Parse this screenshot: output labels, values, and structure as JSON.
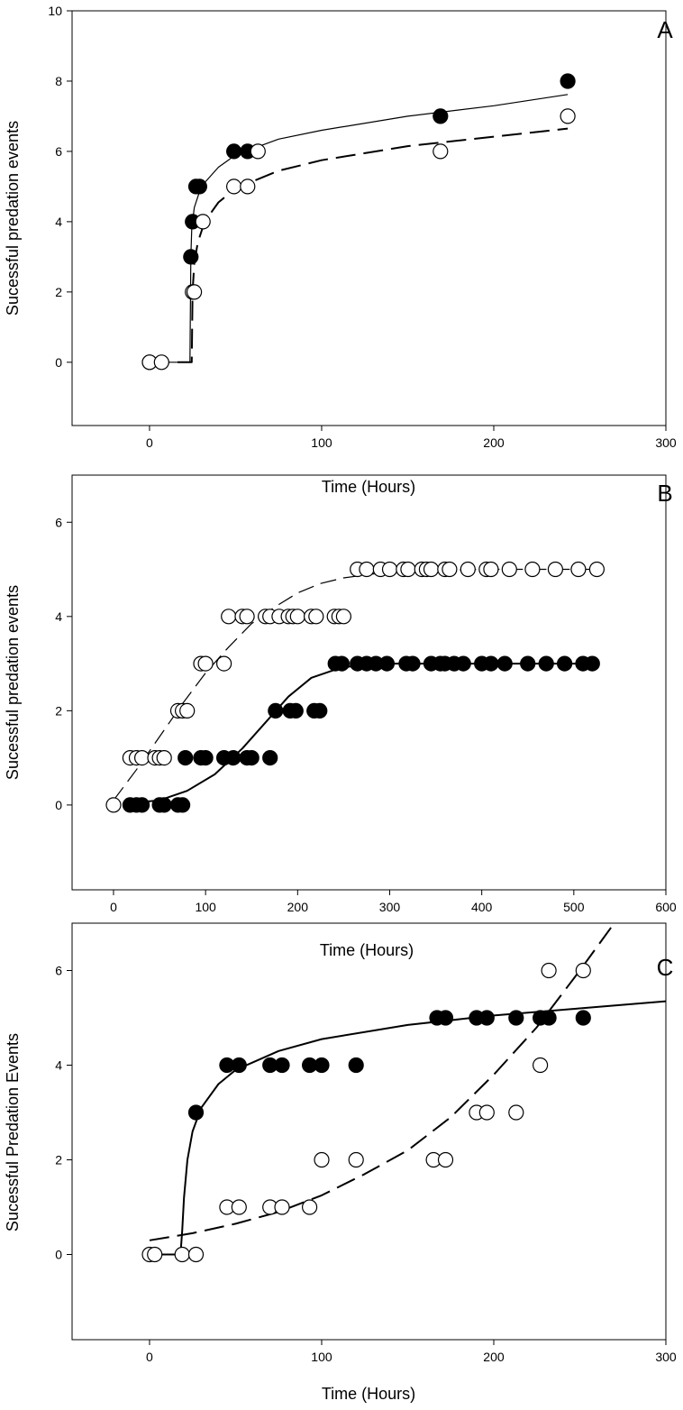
{
  "chart_data": [
    {
      "type": "scatter",
      "panel_label": "A",
      "xlabel": "Time (Hours)",
      "ylabel": "Sucessful predation events",
      "xlim": [
        -45,
        300
      ],
      "ylim": [
        -1.8,
        10
      ],
      "xticks": [
        0,
        100,
        200,
        300
      ],
      "yticks": [
        0,
        2,
        4,
        6,
        8,
        10
      ],
      "grid": false,
      "series": [
        {
          "marker": "filled-circle",
          "fit_line": "solid-thin",
          "points": [
            [
              0,
              0
            ],
            [
              24,
              3
            ],
            [
              25,
              4
            ],
            [
              27,
              5
            ],
            [
              29,
              5
            ],
            [
              49,
              6
            ],
            [
              57,
              6
            ],
            [
              169,
              7
            ],
            [
              243,
              8
            ]
          ],
          "fit": [
            [
              0,
              0
            ],
            [
              23.5,
              0
            ],
            [
              24,
              3
            ],
            [
              24.5,
              3.8
            ],
            [
              26,
              4.4
            ],
            [
              30,
              5.0
            ],
            [
              40,
              5.55
            ],
            [
              50,
              5.9
            ],
            [
              75,
              6.35
            ],
            [
              100,
              6.6
            ],
            [
              150,
              7.0
            ],
            [
              200,
              7.3
            ],
            [
              243,
              7.62
            ]
          ]
        },
        {
          "marker": "open-circle",
          "fit_line": "dashed",
          "points": [
            [
              0,
              0
            ],
            [
              7,
              0
            ],
            [
              25,
              2
            ],
            [
              26,
              2
            ],
            [
              31,
              4
            ],
            [
              49,
              5
            ],
            [
              57,
              5
            ],
            [
              63,
              6
            ],
            [
              169,
              6
            ],
            [
              243,
              7
            ]
          ],
          "fit": [
            [
              0,
              0
            ],
            [
              24.5,
              0
            ],
            [
              25,
              2
            ],
            [
              26,
              2.8
            ],
            [
              28,
              3.4
            ],
            [
              32,
              4.0
            ],
            [
              40,
              4.55
            ],
            [
              50,
              4.95
            ],
            [
              75,
              5.45
            ],
            [
              100,
              5.75
            ],
            [
              150,
              6.15
            ],
            [
              200,
              6.42
            ],
            [
              243,
              6.65
            ]
          ]
        }
      ]
    },
    {
      "type": "scatter",
      "panel_label": "B",
      "xlabel": "Time (Hours)",
      "ylabel": "Sucessful predation events",
      "xlim": [
        -45,
        600
      ],
      "ylim": [
        -1.8,
        7
      ],
      "xticks": [
        0,
        100,
        200,
        300,
        400,
        500,
        600
      ],
      "yticks": [
        0,
        2,
        4,
        6
      ],
      "grid": false,
      "series": [
        {
          "marker": "filled-circle",
          "fit_line": "solid",
          "points": [
            [
              18,
              0
            ],
            [
              25,
              0
            ],
            [
              31,
              0
            ],
            [
              50,
              0
            ],
            [
              55,
              0
            ],
            [
              70,
              0
            ],
            [
              75,
              0
            ],
            [
              78,
              1
            ],
            [
              95,
              1
            ],
            [
              100,
              1
            ],
            [
              120,
              1
            ],
            [
              130,
              1
            ],
            [
              145,
              1
            ],
            [
              150,
              1
            ],
            [
              170,
              1
            ],
            [
              176,
              2
            ],
            [
              192,
              2
            ],
            [
              198,
              2
            ],
            [
              218,
              2
            ],
            [
              224,
              2
            ],
            [
              241,
              3
            ],
            [
              248,
              3
            ],
            [
              265,
              3
            ],
            [
              275,
              3
            ],
            [
              285,
              3
            ],
            [
              297,
              3
            ],
            [
              318,
              3
            ],
            [
              325,
              3
            ],
            [
              345,
              3
            ],
            [
              355,
              3
            ],
            [
              360,
              3
            ],
            [
              370,
              3
            ],
            [
              380,
              3
            ],
            [
              400,
              3
            ],
            [
              410,
              3
            ],
            [
              425,
              3
            ],
            [
              450,
              3
            ],
            [
              470,
              3
            ],
            [
              490,
              3
            ],
            [
              510,
              3
            ],
            [
              520,
              3
            ]
          ],
          "fit": [
            [
              18,
              0.04
            ],
            [
              50,
              0.1
            ],
            [
              80,
              0.3
            ],
            [
              110,
              0.65
            ],
            [
              140,
              1.2
            ],
            [
              165,
              1.75
            ],
            [
              190,
              2.3
            ],
            [
              215,
              2.7
            ],
            [
              245,
              2.9
            ],
            [
              270,
              2.98
            ],
            [
              300,
              3.0
            ],
            [
              400,
              3.0
            ],
            [
              520,
              3.0
            ]
          ]
        },
        {
          "marker": "open-circle",
          "fit_line": "dashed-thin",
          "points": [
            [
              0,
              0
            ],
            [
              18,
              1
            ],
            [
              25,
              1
            ],
            [
              31,
              1
            ],
            [
              45,
              1
            ],
            [
              50,
              1
            ],
            [
              55,
              1
            ],
            [
              70,
              2
            ],
            [
              75,
              2
            ],
            [
              80,
              2
            ],
            [
              95,
              3
            ],
            [
              100,
              3
            ],
            [
              120,
              3
            ],
            [
              125,
              4
            ],
            [
              140,
              4
            ],
            [
              145,
              4
            ],
            [
              165,
              4
            ],
            [
              170,
              4
            ],
            [
              180,
              4
            ],
            [
              190,
              4
            ],
            [
              195,
              4
            ],
            [
              200,
              4
            ],
            [
              215,
              4
            ],
            [
              220,
              4
            ],
            [
              240,
              4
            ],
            [
              245,
              4
            ],
            [
              250,
              4
            ],
            [
              265,
              5
            ],
            [
              275,
              5
            ],
            [
              290,
              5
            ],
            [
              300,
              5
            ],
            [
              315,
              5
            ],
            [
              320,
              5
            ],
            [
              335,
              5
            ],
            [
              340,
              5
            ],
            [
              345,
              5
            ],
            [
              360,
              5
            ],
            [
              365,
              5
            ],
            [
              385,
              5
            ],
            [
              405,
              5
            ],
            [
              410,
              5
            ],
            [
              430,
              5
            ],
            [
              455,
              5
            ],
            [
              480,
              5
            ],
            [
              505,
              5
            ],
            [
              525,
              5
            ]
          ],
          "fit": [
            [
              0,
              0.1
            ],
            [
              25,
              0.75
            ],
            [
              50,
              1.45
            ],
            [
              75,
              2.15
            ],
            [
              100,
              2.8
            ],
            [
              125,
              3.35
            ],
            [
              150,
              3.85
            ],
            [
              175,
              4.2
            ],
            [
              200,
              4.5
            ],
            [
              225,
              4.7
            ],
            [
              250,
              4.82
            ],
            [
              300,
              4.95
            ],
            [
              400,
              5.0
            ],
            [
              525,
              5.0
            ]
          ]
        }
      ]
    },
    {
      "type": "scatter",
      "panel_label": "C",
      "xlabel": "Time (Hours)",
      "ylabel": "Sucessful Predation Events",
      "xlim": [
        -45,
        300
      ],
      "ylim": [
        -1.8,
        7
      ],
      "xticks": [
        0,
        100,
        200,
        300
      ],
      "yticks": [
        0,
        2,
        4,
        6
      ],
      "grid": false,
      "series": [
        {
          "marker": "filled-circle",
          "fit_line": "solid",
          "points": [
            [
              27,
              3
            ],
            [
              45,
              4
            ],
            [
              52,
              4
            ],
            [
              70,
              4
            ],
            [
              77,
              4
            ],
            [
              93,
              4
            ],
            [
              100,
              4
            ],
            [
              120,
              4
            ],
            [
              167,
              5
            ],
            [
              172,
              5
            ],
            [
              190,
              5
            ],
            [
              196,
              5
            ],
            [
              213,
              5
            ],
            [
              227,
              5
            ],
            [
              232,
              5
            ],
            [
              252,
              5
            ]
          ],
          "fit": [
            [
              0,
              0
            ],
            [
              18,
              0
            ],
            [
              19,
              0.5
            ],
            [
              20,
              1.2
            ],
            [
              22,
              2.0
            ],
            [
              25,
              2.6
            ],
            [
              30,
              3.1
            ],
            [
              40,
              3.6
            ],
            [
              50,
              3.9
            ],
            [
              75,
              4.3
            ],
            [
              100,
              4.55
            ],
            [
              150,
              4.85
            ],
            [
              200,
              5.05
            ],
            [
              250,
              5.2
            ],
            [
              300,
              5.35
            ]
          ]
        },
        {
          "marker": "open-circle",
          "fit_line": "dashed",
          "points": [
            [
              0,
              0
            ],
            [
              3,
              0
            ],
            [
              19,
              0
            ],
            [
              27,
              0
            ],
            [
              45,
              1
            ],
            [
              52,
              1
            ],
            [
              70,
              1
            ],
            [
              77,
              1
            ],
            [
              93,
              1
            ],
            [
              100,
              2
            ],
            [
              120,
              2
            ],
            [
              165,
              2
            ],
            [
              172,
              2
            ],
            [
              190,
              3
            ],
            [
              196,
              3
            ],
            [
              213,
              3
            ],
            [
              227,
              4
            ],
            [
              232,
              6
            ],
            [
              252,
              6
            ]
          ],
          "fit": [
            [
              0,
              0.3
            ],
            [
              25,
              0.45
            ],
            [
              50,
              0.65
            ],
            [
              75,
              0.9
            ],
            [
              100,
              1.25
            ],
            [
              125,
              1.7
            ],
            [
              150,
              2.2
            ],
            [
              175,
              2.9
            ],
            [
              200,
              3.8
            ],
            [
              225,
              4.8
            ],
            [
              250,
              6.0
            ],
            [
              270,
              7.0
            ]
          ]
        }
      ]
    }
  ]
}
